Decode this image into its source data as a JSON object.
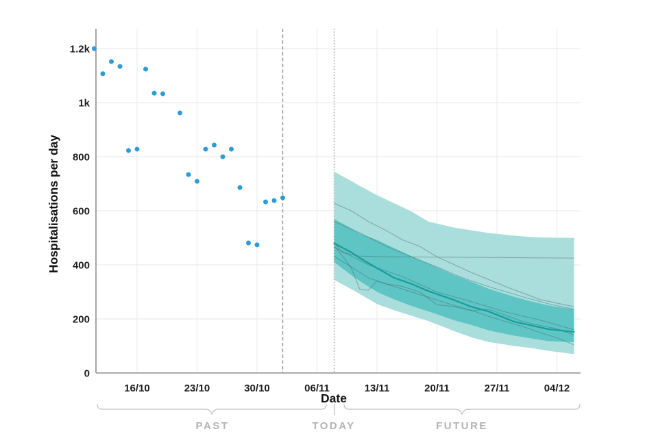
{
  "chart_data": {
    "type": "scatter",
    "title": "",
    "xlabel": "Date",
    "ylabel": "Hospitalisations per day",
    "ylim": [
      0,
      1270
    ],
    "grid": true,
    "legend": "none",
    "y_ticks": [
      {
        "value": 1200,
        "label": "1.2k"
      },
      {
        "value": 1000,
        "label": "1k"
      },
      {
        "value": 800,
        "label": "800"
      },
      {
        "value": 600,
        "label": "600"
      },
      {
        "value": 400,
        "label": "400"
      },
      {
        "value": 200,
        "label": "200"
      },
      {
        "value": 0,
        "label": "0"
      }
    ],
    "x_ticks": [
      {
        "day": 5,
        "label": "16/10"
      },
      {
        "day": 12,
        "label": "23/10"
      },
      {
        "day": 19,
        "label": "30/10"
      },
      {
        "day": 26,
        "label": "06/11"
      },
      {
        "day": 33,
        "label": "13/11"
      },
      {
        "day": 40,
        "label": "20/11"
      },
      {
        "day": 47,
        "label": "27/11"
      },
      {
        "day": 54,
        "label": "04/12"
      }
    ],
    "observed": {
      "name": "Hospitalisations per day (observed)",
      "points": [
        {
          "date": "11/10",
          "day": 0,
          "value": 1200
        },
        {
          "date": "12/10",
          "day": 1,
          "value": 1107
        },
        {
          "date": "13/10",
          "day": 2,
          "value": 1152
        },
        {
          "date": "14/10",
          "day": 3,
          "value": 1134
        },
        {
          "date": "15/10",
          "day": 4,
          "value": 823
        },
        {
          "date": "16/10",
          "day": 5,
          "value": 828
        },
        {
          "date": "17/10",
          "day": 6,
          "value": 1124
        },
        {
          "date": "18/10",
          "day": 7,
          "value": 1035
        },
        {
          "date": "19/10",
          "day": 8,
          "value": 1033
        },
        {
          "date": "21/10",
          "day": 10,
          "value": 962
        },
        {
          "date": "22/10",
          "day": 11,
          "value": 734
        },
        {
          "date": "23/10",
          "day": 12,
          "value": 709
        },
        {
          "date": "24/10",
          "day": 13,
          "value": 828
        },
        {
          "date": "25/10",
          "day": 14,
          "value": 843
        },
        {
          "date": "26/10",
          "day": 15,
          "value": 800
        },
        {
          "date": "27/10",
          "day": 16,
          "value": 828
        },
        {
          "date": "28/10",
          "day": 17,
          "value": 686
        },
        {
          "date": "29/10",
          "day": 18,
          "value": 481
        },
        {
          "date": "30/10",
          "day": 19,
          "value": 474
        },
        {
          "date": "31/10",
          "day": 20,
          "value": 633
        },
        {
          "date": "01/11",
          "day": 21,
          "value": 638
        },
        {
          "date": "02/11",
          "day": 22,
          "value": 648
        }
      ]
    },
    "cutoff_line": {
      "date": "02/11",
      "day": 22,
      "style": "dashed"
    },
    "today_line": {
      "date": "08/11",
      "day": 28,
      "style": "dotted"
    },
    "forecast": {
      "start_date": "08/11",
      "end_date": "06/12",
      "days": [
        28,
        30,
        31,
        33,
        35,
        37,
        39,
        42,
        44,
        46,
        49,
        51,
        53,
        56
      ],
      "outer_top": [
        745,
        710,
        692,
        658,
        628,
        598,
        560,
        538,
        528,
        518,
        508,
        503,
        501,
        500
      ],
      "outer_bottom": [
        345,
        310,
        292,
        255,
        232,
        212,
        192,
        155,
        132,
        115,
        100,
        92,
        82,
        70
      ],
      "inner_top": [
        570,
        535,
        516,
        492,
        462,
        432,
        405,
        362,
        338,
        312,
        282,
        265,
        250,
        235
      ],
      "inner_bottom": [
        410,
        362,
        340,
        300,
        272,
        248,
        228,
        195,
        178,
        158,
        138,
        128,
        118,
        114
      ],
      "median": [
        480,
        446,
        425,
        388,
        352,
        330,
        303,
        270,
        245,
        228,
        190,
        176,
        162,
        152
      ],
      "trajectories": [
        {
          "days": [
            28,
            29,
            31,
            34,
            56
          ],
          "values": [
            480,
            445,
            432,
            430,
            425
          ]
        },
        {
          "days": [
            28,
            30,
            32,
            34,
            36,
            38,
            40,
            44,
            48,
            52,
            56
          ],
          "values": [
            628,
            600,
            560,
            528,
            492,
            468,
            430,
            372,
            320,
            272,
            245
          ]
        },
        {
          "days": [
            28,
            31,
            34,
            37,
            40,
            43,
            46,
            50,
            53,
            56
          ],
          "values": [
            560,
            518,
            470,
            430,
            392,
            352,
            320,
            282,
            256,
            236
          ]
        },
        {
          "days": [
            28,
            29,
            30,
            31,
            32,
            33,
            34,
            36,
            38,
            40,
            42,
            44,
            46,
            48,
            50,
            52,
            54,
            56
          ],
          "values": [
            470,
            432,
            388,
            310,
            306,
            340,
            330,
            320,
            300,
            252,
            246,
            230,
            236,
            214,
            190,
            176,
            164,
            140
          ]
        },
        {
          "days": [
            28,
            30,
            32,
            34,
            36,
            38,
            40,
            42,
            44,
            46,
            48,
            50,
            52,
            54,
            56
          ],
          "values": [
            432,
            392,
            352,
            330,
            310,
            290,
            270,
            250,
            232,
            210,
            190,
            172,
            150,
            130,
            104
          ]
        },
        {
          "days": [
            28,
            32,
            36,
            40,
            44,
            48,
            52,
            56
          ],
          "values": [
            465,
            400,
            356,
            300,
            264,
            226,
            196,
            160
          ]
        }
      ]
    },
    "annotations": {
      "past": "PAST",
      "today": "TODAY",
      "future": "FUTURE"
    },
    "colors": {
      "observed_point": "#2b9cd8",
      "band_outer": "#a9dedd",
      "band_inner": "#5ec5c4",
      "median_line": "#149d9c",
      "trajectory_line": "rgba(70,106,110,0.45)",
      "grid": "#ececec",
      "axis": "#8f8f8f",
      "cutoff_line": "#8f8f8f",
      "today_line": "#9a9a9a",
      "tick_text": "#1c1c1c",
      "zone_text": "#b3b3b3",
      "brace": "#c8c8c8"
    }
  }
}
